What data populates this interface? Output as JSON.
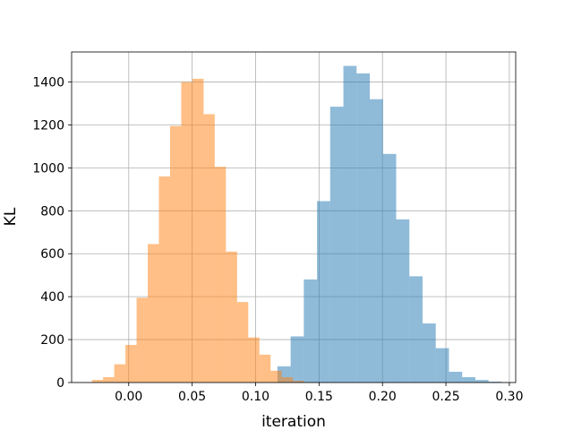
{
  "chart_data": {
    "type": "bar",
    "title": "",
    "xlabel": "iteration",
    "ylabel": "KL",
    "xlim": [
      -0.045,
      0.305
    ],
    "ylim": [
      0,
      1540
    ],
    "grid": true,
    "legend": "none",
    "xticks": [
      0.0,
      0.05,
      0.1,
      0.15,
      0.2,
      0.25,
      0.3
    ],
    "xtick_labels": [
      "0.00",
      "0.05",
      "0.10",
      "0.15",
      "0.20",
      "0.25",
      "0.30"
    ],
    "yticks": [
      0,
      200,
      400,
      600,
      800,
      1000,
      1200,
      1400
    ],
    "ytick_labels": [
      "0",
      "200",
      "400",
      "600",
      "800",
      "1000",
      "1200",
      "1400"
    ],
    "series": [
      {
        "color": "#1f77b4",
        "alpha": 0.5,
        "bin_width": 0.0104,
        "bin_starts": [
          0.1172,
          0.1276,
          0.138,
          0.1484,
          0.1588,
          0.1692,
          0.1796,
          0.19,
          0.2004,
          0.2108,
          0.2212,
          0.2316,
          0.242,
          0.2524,
          0.2628,
          0.2732,
          0.2836
        ],
        "counts": [
          75,
          215,
          480,
          845,
          1285,
          1475,
          1440,
          1320,
          1065,
          760,
          495,
          275,
          160,
          50,
          25,
          12,
          4
        ]
      },
      {
        "color": "#ff7f0e",
        "alpha": 0.5,
        "bin_width": 0.0088,
        "bin_starts": [
          -0.029,
          -0.0202,
          -0.0114,
          -0.0026,
          0.0062,
          0.015,
          0.0238,
          0.0326,
          0.0414,
          0.0502,
          0.059,
          0.0678,
          0.0766,
          0.0854,
          0.0942,
          0.103,
          0.1118,
          0.1206,
          0.1294
        ],
        "counts": [
          12,
          25,
          85,
          175,
          395,
          645,
          960,
          1195,
          1400,
          1415,
          1250,
          1005,
          610,
          375,
          210,
          130,
          55,
          25,
          8
        ]
      }
    ]
  }
}
